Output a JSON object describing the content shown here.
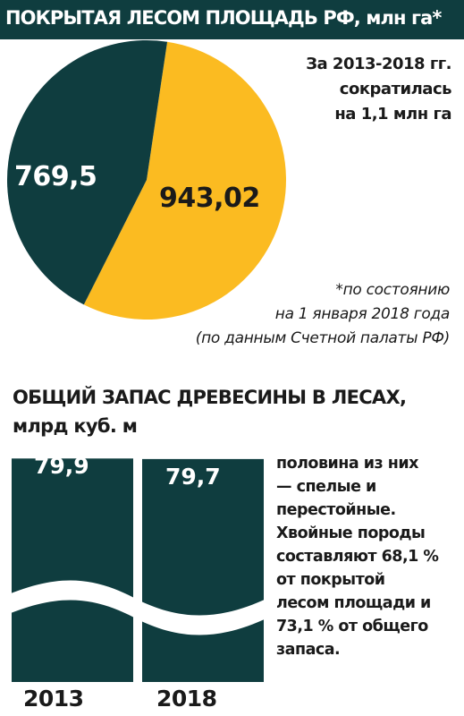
{
  "header": {
    "title": "ПОКРЫТАЯ ЛЕСОМ ПЛОЩАДЬ РФ, млн га*",
    "bar_color": "#0f3d3f"
  },
  "reduction_note": {
    "line1": "За 2013-2018 гг.",
    "line2": "сократилась",
    "line3": "на 1,1 млн га"
  },
  "footnote": {
    "line1": "*по состоянию",
    "line2": "на 1 января 2018 года",
    "line3": "(по данным Счетной палаты РФ)"
  },
  "section2": {
    "title_line1": "ОБЩИЙ ЗАПАС ДРЕВЕСИНЫ В ЛЕСАХ,",
    "title_line2": "млрд куб. м"
  },
  "side_note": {
    "line1": "половина из них",
    "line2": "— спелые и",
    "line3": "перестойные.",
    "line4": "Хвойные породы",
    "line5": "составляют 68,1 %",
    "line6": "от покрытой",
    "line7": "лесом площади и",
    "line8": "73,1 % от общего",
    "line9": "запаса."
  },
  "colors": {
    "dark_teal": "#0f3d3f",
    "yellow": "#fbbb21"
  },
  "chart_data": [
    {
      "type": "pie",
      "title": "ПОКРЫТАЯ ЛЕСОМ ПЛОЩАДЬ РФ, млн га*",
      "labels": [
        "769,5",
        "943,02"
      ],
      "values": [
        769.5,
        943.02
      ],
      "colors": [
        "#0f3d3f",
        "#fbbb21"
      ]
    },
    {
      "type": "bar",
      "title": "ОБЩИЙ ЗАПАС ДРЕВЕСИНЫ В ЛЕСАХ, млрд куб. м",
      "categories": [
        "2013",
        "2018"
      ],
      "values": [
        79.9,
        79.7
      ],
      "labels": [
        "79,9",
        "79,7"
      ],
      "axis_break": true,
      "color": "#0f3d3f"
    }
  ]
}
